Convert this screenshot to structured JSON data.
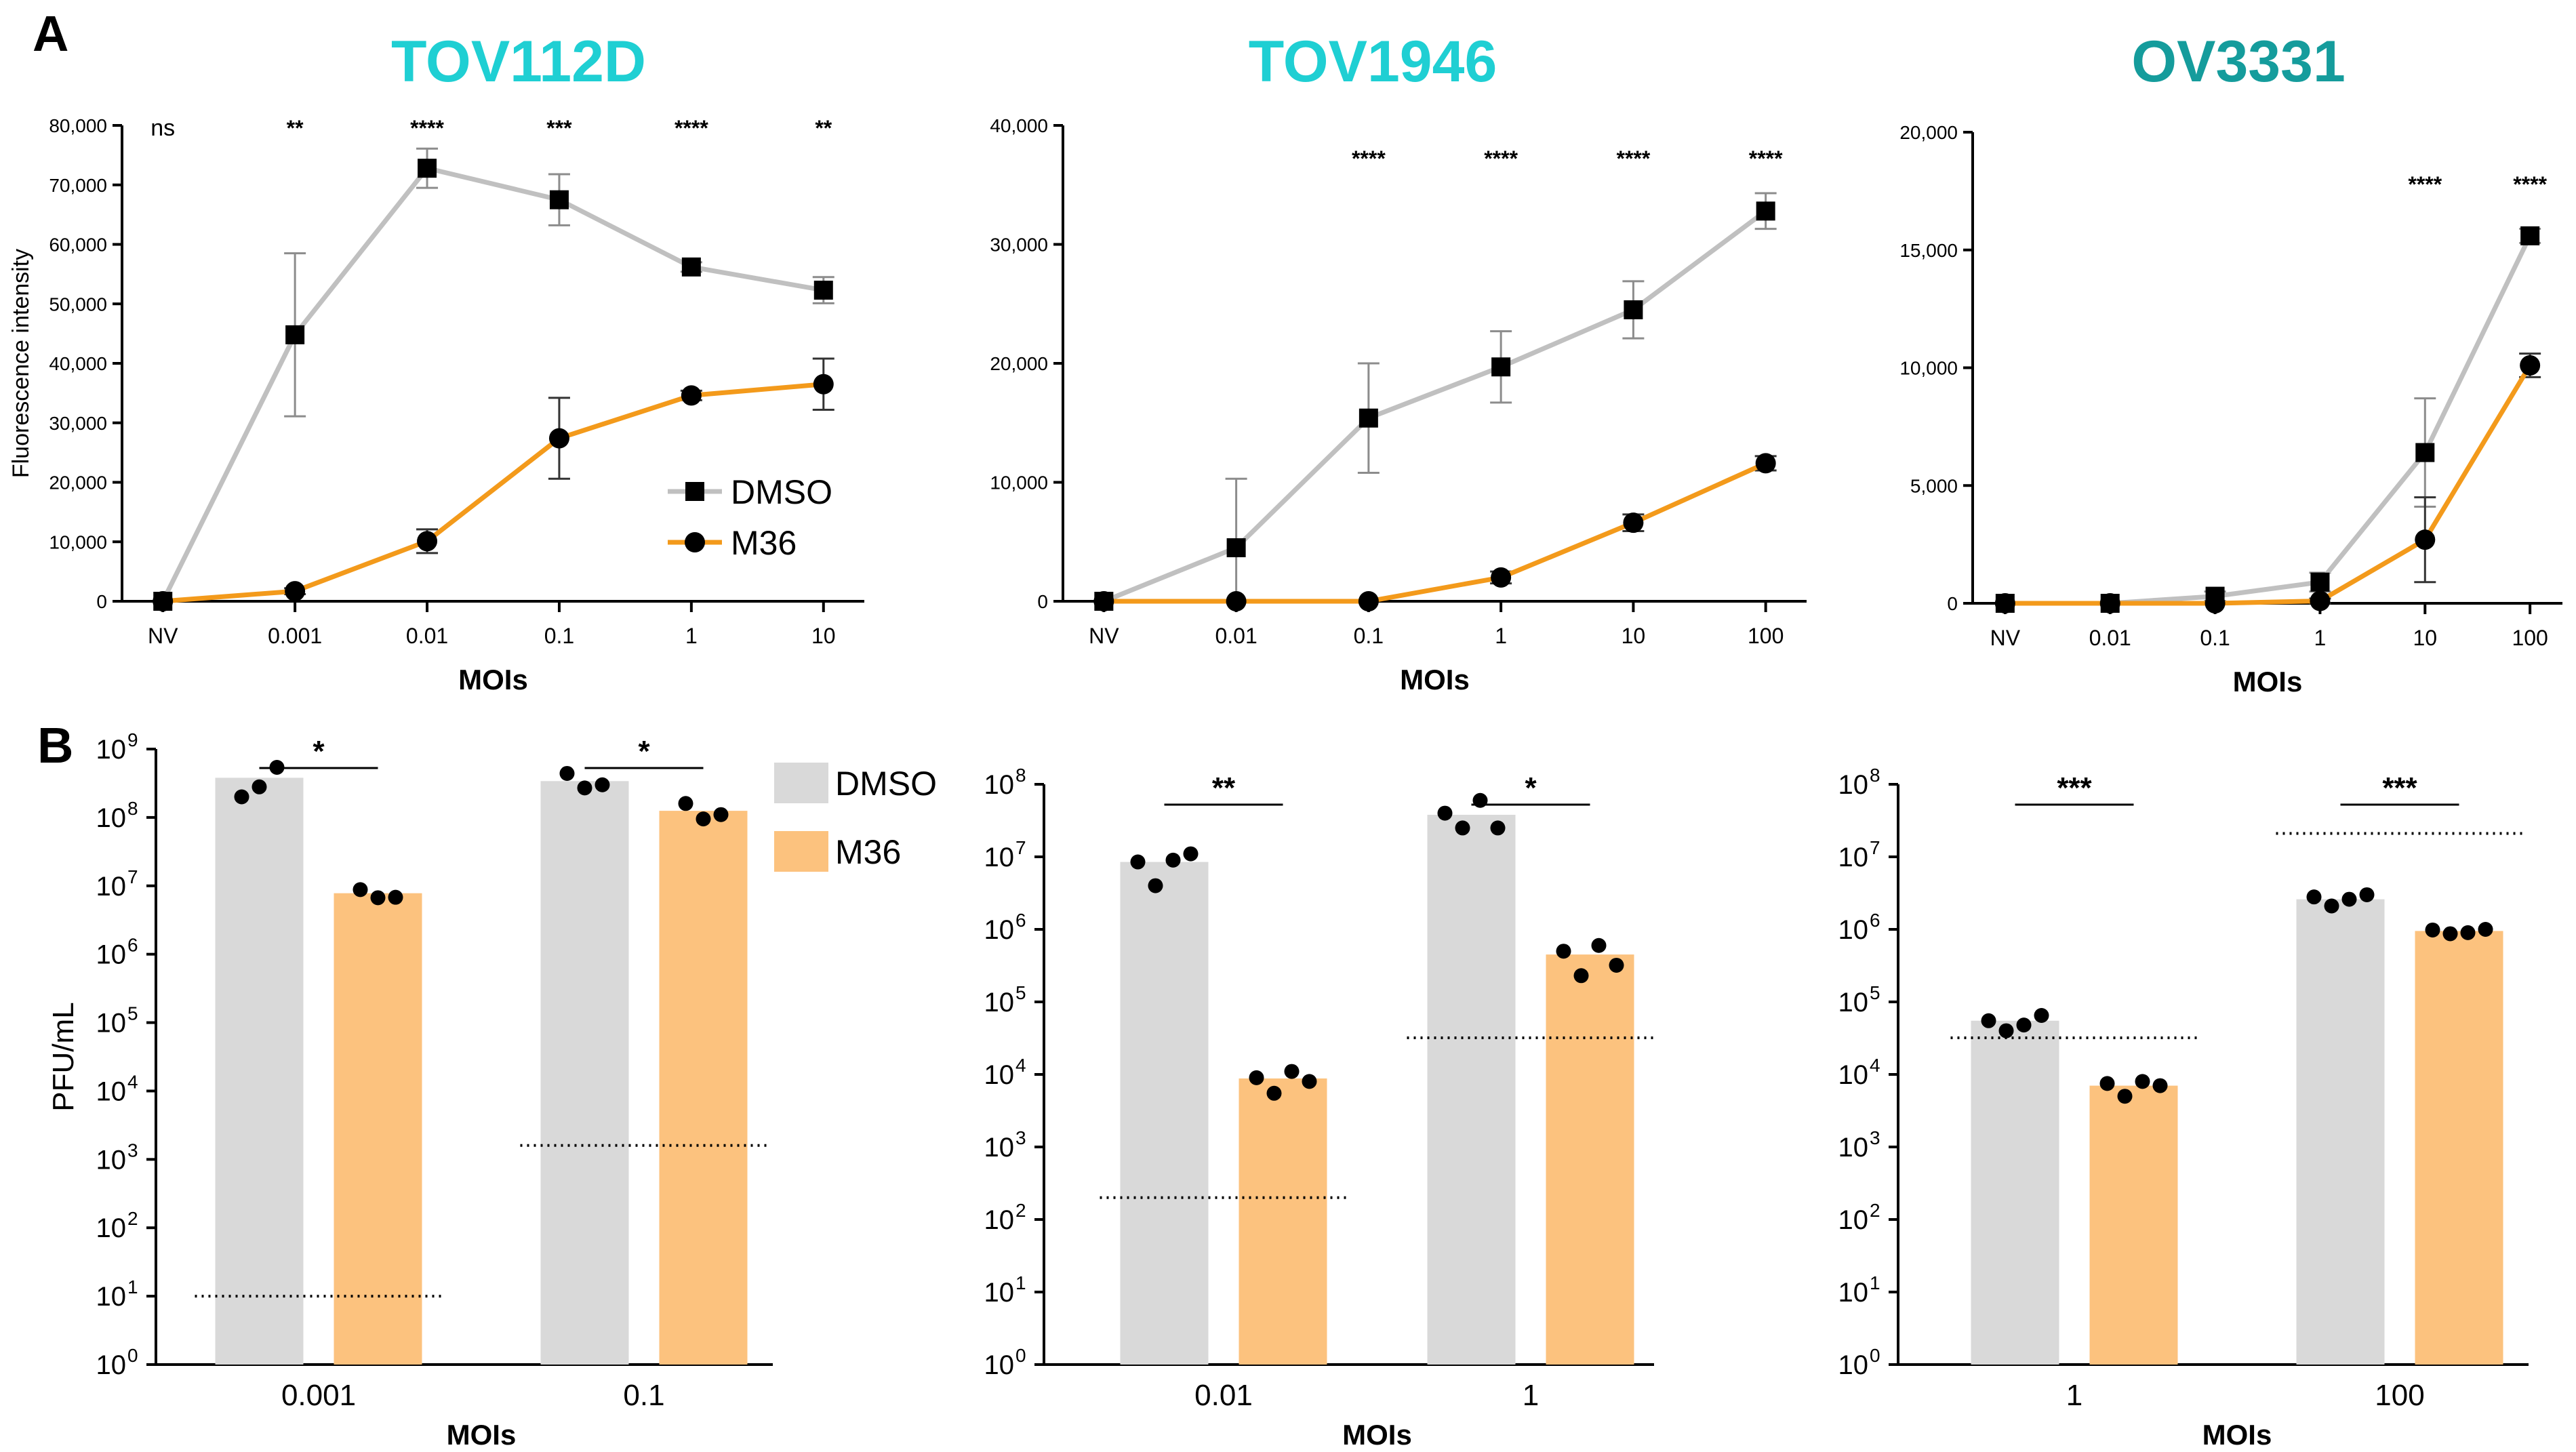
{
  "figure": {
    "panel_a_letter": "A",
    "panel_b_letter": "B"
  },
  "colors": {
    "dmso_line": "#c0c0c0",
    "m36_line": "#f39a1b",
    "dmso_bar": "#d9d9d9",
    "m36_bar": "#fcc27e",
    "title_cyan": "#1fcfd3",
    "title_teal": "#159c9c",
    "marker": "#000000"
  },
  "legend_a": {
    "dmso": "DMSO",
    "m36": "M36"
  },
  "legend_b": {
    "dmso": "DMSO",
    "m36": "M36"
  },
  "chart_data": [
    {
      "type": "line",
      "panel": "A",
      "title": "TOV112D",
      "title_color": "#1fcfd3",
      "xlabel": "MOIs",
      "ylabel": "Fluorescence intensity",
      "categories": [
        "NV",
        "0.001",
        "0.01",
        "0.1",
        "1",
        "10"
      ],
      "ylim": [
        0,
        80000
      ],
      "yticks": [
        0,
        10000,
        20000,
        30000,
        40000,
        50000,
        60000,
        70000,
        80000
      ],
      "ytick_labels": [
        "0",
        "10,000",
        "20,000",
        "30,000",
        "40,000",
        "50,000",
        "60,000",
        "70,000",
        "80,000"
      ],
      "series": [
        {
          "name": "DMSO",
          "values": [
            0,
            44800,
            72800,
            67500,
            56200,
            52300
          ],
          "errors": [
            0,
            13700,
            3300,
            4300,
            800,
            2200
          ]
        },
        {
          "name": "M36",
          "values": [
            0,
            1700,
            10100,
            27400,
            34600,
            36500
          ],
          "errors": [
            0,
            500,
            2000,
            6800,
            800,
            4300
          ]
        }
      ],
      "significance": [
        "ns",
        "**",
        "****",
        "***",
        "****",
        "**"
      ]
    },
    {
      "type": "line",
      "panel": "A",
      "title": "TOV1946",
      "title_color": "#1fcfd3",
      "xlabel": "MOIs",
      "ylabel": "",
      "categories": [
        "NV",
        "0.01",
        "0.1",
        "1",
        "10",
        "100"
      ],
      "ylim": [
        0,
        40000
      ],
      "yticks": [
        0,
        10000,
        20000,
        30000,
        40000
      ],
      "ytick_labels": [
        "0",
        "10,000",
        "20,000",
        "30,000",
        "40,000"
      ],
      "series": [
        {
          "name": "DMSO",
          "values": [
            0,
            4500,
            15400,
            19700,
            24500,
            32800
          ],
          "errors": [
            0,
            5800,
            4600,
            3000,
            2400,
            1500
          ]
        },
        {
          "name": "M36",
          "values": [
            0,
            0,
            0,
            2000,
            6600,
            11600
          ],
          "errors": [
            0,
            0,
            0,
            500,
            700,
            600
          ]
        }
      ],
      "significance": [
        "",
        "",
        "****",
        "****",
        "****",
        "****"
      ]
    },
    {
      "type": "line",
      "panel": "A",
      "title": "OV3331",
      "title_color": "#159c9c",
      "xlabel": "MOIs",
      "ylabel": "",
      "categories": [
        "NV",
        "0.01",
        "0.1",
        "1",
        "10",
        "100"
      ],
      "ylim": [
        0,
        20000
      ],
      "yticks": [
        0,
        5000,
        10000,
        15000,
        20000
      ],
      "ytick_labels": [
        "0",
        "5,000",
        "10,000",
        "15,000",
        "20,000"
      ],
      "series": [
        {
          "name": "DMSO",
          "values": [
            0,
            0,
            300,
            900,
            6400,
            15600
          ],
          "errors": [
            0,
            0,
            200,
            400,
            2300,
            300
          ]
        },
        {
          "name": "M36",
          "values": [
            0,
            0,
            0,
            100,
            2700,
            10100
          ],
          "errors": [
            0,
            0,
            0,
            100,
            1800,
            500
          ]
        }
      ],
      "significance": [
        "",
        "",
        "",
        "",
        "****",
        "****"
      ]
    },
    {
      "type": "bar",
      "panel": "B",
      "yscale": "log",
      "xlabel": "MOIs",
      "ylabel": "PFU/mL",
      "categories": [
        "0.001",
        "0.1"
      ],
      "ylim_exp": [
        0,
        9
      ],
      "ytick_labels": [
        "10",
        "10",
        "10",
        "10",
        "10",
        "10",
        "10",
        "10",
        "10",
        "10"
      ],
      "ytick_exps": [
        "0",
        "1",
        "2",
        "3",
        "4",
        "5",
        "6",
        "7",
        "8",
        "9"
      ],
      "series": [
        {
          "name": "DMSO",
          "values": [
            380000000,
            340000000
          ],
          "points": [
            [
              200000000,
              280000000,
              540000000
            ],
            [
              440000000,
              270000000,
              300000000
            ]
          ]
        },
        {
          "name": "M36",
          "values": [
            7800000,
            125000000
          ],
          "points": [
            [
              8800000,
              6700000,
              6800000
            ],
            [
              160000000,
              95000000,
              110000000
            ]
          ]
        }
      ],
      "detection_limits": [
        10,
        1600
      ],
      "significance": [
        "*",
        "*"
      ]
    },
    {
      "type": "bar",
      "panel": "B",
      "yscale": "log",
      "xlabel": "MOIs",
      "ylabel": "",
      "categories": [
        "0.01",
        "1"
      ],
      "ylim_exp": [
        0,
        8
      ],
      "ytick_labels": [
        "10",
        "10",
        "10",
        "10",
        "10",
        "10",
        "10",
        "10",
        "10"
      ],
      "ytick_exps": [
        "0",
        "1",
        "2",
        "3",
        "4",
        "5",
        "6",
        "7",
        "8"
      ],
      "series": [
        {
          "name": "DMSO",
          "values": [
            8500000,
            38000000
          ],
          "points": [
            [
              8500000,
              4000000,
              9000000,
              11000000
            ],
            [
              40000000,
              25000000,
              60000000,
              25000000
            ]
          ]
        },
        {
          "name": "M36",
          "values": [
            8800,
            450000
          ],
          "points": [
            [
              9000,
              5500,
              11000,
              8000
            ],
            [
              500000,
              230000,
              600000,
              320000
            ]
          ]
        }
      ],
      "detection_limits": [
        200,
        32000
      ],
      "significance": [
        "**",
        "*"
      ]
    },
    {
      "type": "bar",
      "panel": "B",
      "yscale": "log",
      "xlabel": "MOIs",
      "ylabel": "",
      "categories": [
        "1",
        "100"
      ],
      "ylim_exp": [
        0,
        8
      ],
      "ytick_labels": [
        "10",
        "10",
        "10",
        "10",
        "10",
        "10",
        "10",
        "10",
        "10"
      ],
      "ytick_exps": [
        "0",
        "1",
        "2",
        "3",
        "4",
        "5",
        "6",
        "7",
        "8"
      ],
      "series": [
        {
          "name": "DMSO",
          "values": [
            55000,
            2600000
          ],
          "points": [
            [
              55000,
              40000,
              48000,
              65000
            ],
            [
              2800000,
              2100000,
              2600000,
              3000000
            ]
          ]
        },
        {
          "name": "M36",
          "values": [
            7000,
            950000
          ],
          "points": [
            [
              7500,
              5000,
              8000,
              7000
            ],
            [
              980000,
              870000,
              900000,
              1000000
            ]
          ]
        }
      ],
      "detection_limits": [
        32000,
        21000000
      ],
      "significance": [
        "***",
        "***"
      ]
    }
  ]
}
